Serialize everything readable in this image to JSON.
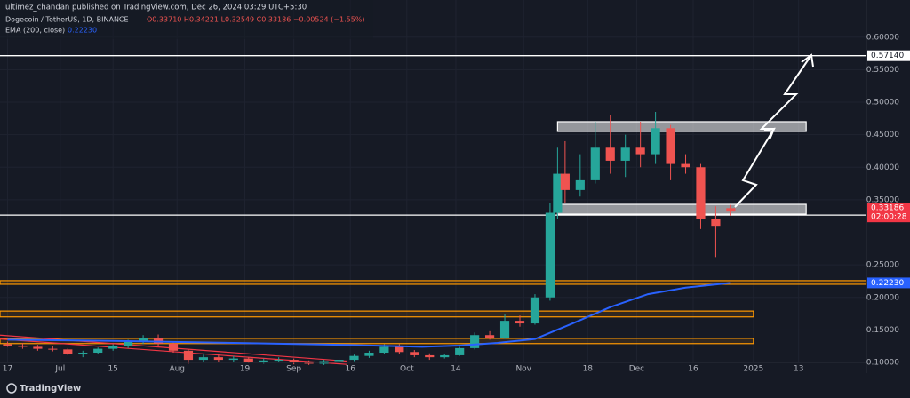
{
  "chart_data": {
    "type": "candlestick",
    "header": "ultimez_chandan published on TradingView.com, Dec 26, 2024 03:29 UTC+5:30",
    "title": "Dogecoin / TetherUS, 1D, BINANCE",
    "ohlc_label": "O0.33710 H0.34221 L0.32549 C0.33186 −0.00524 (−1.55%)",
    "countdown": "02:00:28",
    "brand": "TradingView",
    "xlim": [
      -2,
      228
    ],
    "ylim": [
      0.1,
      0.657
    ],
    "grid": true,
    "xticks": [
      {
        "value": 0,
        "label": "17"
      },
      {
        "value": 14,
        "label": "Jul"
      },
      {
        "value": 28,
        "label": "15"
      },
      {
        "value": 45,
        "label": "Aug"
      },
      {
        "value": 63,
        "label": "19"
      },
      {
        "value": 76,
        "label": "Sep"
      },
      {
        "value": 91,
        "label": "16"
      },
      {
        "value": 106,
        "label": "Oct"
      },
      {
        "value": 119,
        "label": "14"
      },
      {
        "value": 137,
        "label": "Nov"
      },
      {
        "value": 154,
        "label": "18"
      },
      {
        "value": 167,
        "label": "Dec"
      },
      {
        "value": 182,
        "label": "16"
      },
      {
        "value": 198,
        "label": "2025"
      },
      {
        "value": 210,
        "label": "13"
      }
    ],
    "yticks": [
      {
        "value": 0.6,
        "label": "0.60000"
      },
      {
        "value": 0.55,
        "label": "0.55000"
      },
      {
        "value": 0.5,
        "label": "0.50000"
      },
      {
        "value": 0.45,
        "label": "0.45000"
      },
      {
        "value": 0.4,
        "label": "0.40000"
      },
      {
        "value": 0.35,
        "label": "0.35000"
      },
      {
        "value": 0.25,
        "label": "0.25000"
      },
      {
        "value": 0.2,
        "label": "0.20000"
      },
      {
        "value": 0.15,
        "label": "0.15000"
      },
      {
        "value": 0.1,
        "label": "0.10000"
      }
    ],
    "up_color": "#26a69a",
    "down_color": "#ef5350",
    "candles": {
      "x": [
        0,
        4,
        8,
        12,
        16,
        20,
        24,
        28,
        32,
        36,
        40,
        44,
        48,
        52,
        56,
        60,
        64,
        68,
        72,
        76,
        80,
        84,
        88,
        92,
        96,
        100,
        104,
        108,
        112,
        116,
        120,
        124,
        128,
        132,
        136,
        140,
        144,
        146,
        148,
        152,
        156,
        160,
        164,
        168,
        172,
        176,
        180,
        184,
        188,
        192
      ],
      "open": [
        0.128,
        0.126,
        0.124,
        0.121,
        0.12,
        0.113,
        0.115,
        0.121,
        0.125,
        0.132,
        0.138,
        0.129,
        0.118,
        0.104,
        0.108,
        0.104,
        0.106,
        0.101,
        0.103,
        0.104,
        0.1,
        0.098,
        0.102,
        0.104,
        0.11,
        0.115,
        0.124,
        0.116,
        0.111,
        0.108,
        0.111,
        0.122,
        0.142,
        0.138,
        0.164,
        0.16,
        0.2,
        0.33,
        0.39,
        0.365,
        0.38,
        0.43,
        0.41,
        0.43,
        0.42,
        0.46,
        0.405,
        0.4,
        0.32,
        0.3371
      ],
      "high": [
        0.132,
        0.13,
        0.127,
        0.125,
        0.122,
        0.118,
        0.123,
        0.128,
        0.135,
        0.142,
        0.143,
        0.132,
        0.12,
        0.112,
        0.112,
        0.11,
        0.108,
        0.106,
        0.108,
        0.106,
        0.103,
        0.104,
        0.107,
        0.112,
        0.118,
        0.128,
        0.128,
        0.119,
        0.114,
        0.113,
        0.124,
        0.146,
        0.148,
        0.175,
        0.172,
        0.205,
        0.345,
        0.43,
        0.44,
        0.42,
        0.47,
        0.48,
        0.45,
        0.47,
        0.485,
        0.465,
        0.42,
        0.405,
        0.34,
        0.34221
      ],
      "low": [
        0.124,
        0.121,
        0.118,
        0.117,
        0.111,
        0.108,
        0.113,
        0.118,
        0.122,
        0.128,
        0.126,
        0.115,
        0.098,
        0.101,
        0.101,
        0.1,
        0.099,
        0.098,
        0.1,
        0.097,
        0.096,
        0.096,
        0.099,
        0.102,
        0.107,
        0.113,
        0.113,
        0.108,
        0.104,
        0.106,
        0.11,
        0.12,
        0.135,
        0.136,
        0.155,
        0.158,
        0.195,
        0.32,
        0.345,
        0.355,
        0.375,
        0.39,
        0.385,
        0.4,
        0.405,
        0.38,
        0.39,
        0.305,
        0.262,
        0.32549
      ],
      "close": [
        0.126,
        0.124,
        0.121,
        0.12,
        0.113,
        0.115,
        0.121,
        0.125,
        0.132,
        0.138,
        0.129,
        0.118,
        0.104,
        0.108,
        0.104,
        0.106,
        0.101,
        0.103,
        0.104,
        0.1,
        0.098,
        0.102,
        0.104,
        0.11,
        0.115,
        0.124,
        0.116,
        0.111,
        0.108,
        0.111,
        0.122,
        0.142,
        0.138,
        0.164,
        0.16,
        0.2,
        0.33,
        0.39,
        0.365,
        0.38,
        0.43,
        0.41,
        0.43,
        0.42,
        0.46,
        0.405,
        0.4,
        0.32,
        0.31,
        0.33186
      ]
    },
    "last_close_label": "0.33186",
    "ema": {
      "name": "EMA (200, close)",
      "color": "#2962ff",
      "last_label": "0.22230",
      "x": [
        0,
        30,
        60,
        90,
        110,
        120,
        130,
        140,
        150,
        160,
        170,
        180,
        192
      ],
      "values": [
        0.135,
        0.133,
        0.13,
        0.127,
        0.124,
        0.126,
        0.13,
        0.136,
        0.16,
        0.185,
        0.205,
        0.215,
        0.2223
      ]
    },
    "lines": [
      {
        "value": 0.5714,
        "label": "0.57140"
      },
      {
        "value": 0.32644,
        "label": "0.32644"
      }
    ],
    "zones": [
      {
        "low": 0.455,
        "high": 0.47,
        "x": [
          146,
          212
        ],
        "color": "#ffffff"
      },
      {
        "low": 0.328,
        "high": 0.343,
        "x": [
          146,
          212
        ],
        "color": "#ffffff"
      },
      {
        "low": 0.2202,
        "high": 0.2257,
        "x": [
          -2,
          228
        ],
        "color": "#ff9800"
      },
      {
        "low": 0.17,
        "high": 0.179,
        "x": [
          -2,
          198
        ],
        "color": "#ff9800"
      },
      {
        "low": 0.129,
        "high": 0.137,
        "x": [
          -2,
          198
        ],
        "color": "#ff9800"
      }
    ],
    "channel": {
      "color": "#f23645",
      "x": [
        -2,
        90
      ],
      "upper": [
        0.142,
        0.102
      ],
      "lower": [
        0.136,
        0.097
      ]
    }
  }
}
